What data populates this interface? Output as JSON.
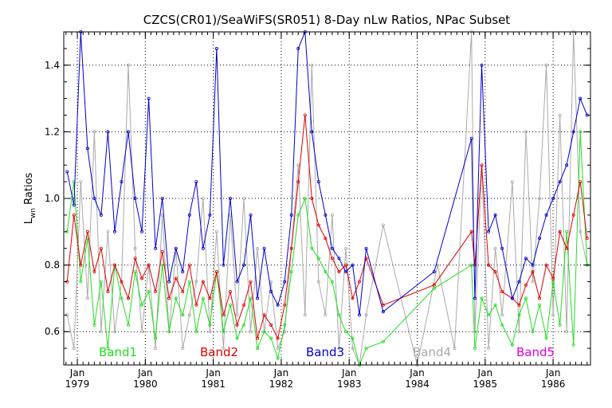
{
  "chart_data": {
    "type": "line",
    "title": "CZCS(CR01)/SeaWiFS(SR051) 8-Day nLw Ratios, NPac Subset",
    "ylabel_main": "L",
    "ylabel_sub": "wn",
    "ylabel_rest": " Ratios",
    "xlim": [
      1978.8,
      1986.55
    ],
    "ylim": [
      0.5,
      1.5
    ],
    "yticks": [
      0.6,
      0.8,
      1.0,
      1.2,
      1.4
    ],
    "ytick_labels": [
      "0.6",
      "0.8",
      "1.0",
      "1.2",
      "1.4"
    ],
    "grid": true,
    "xticks": [
      {
        "month": "Jan",
        "year": "1979",
        "x": 1979.0
      },
      {
        "month": "Jan",
        "year": "1980",
        "x": 1980.0
      },
      {
        "month": "Jan",
        "year": "1981",
        "x": 1981.0
      },
      {
        "month": "Jan",
        "year": "1982",
        "x": 1982.0
      },
      {
        "month": "Jan",
        "year": "1983",
        "x": 1983.0
      },
      {
        "month": "Jan",
        "year": "1984",
        "x": 1984.0
      },
      {
        "month": "Jan",
        "year": "1985",
        "x": 1985.0
      },
      {
        "month": "Jan",
        "year": "1986",
        "x": 1986.0
      }
    ],
    "legend": [
      {
        "name": "Band1",
        "color": "#22dd22"
      },
      {
        "name": "Band2",
        "color": "#dd0000"
      },
      {
        "name": "Band3",
        "color": "#0000cc"
      },
      {
        "name": "Band4",
        "color": "#aaaaaa"
      },
      {
        "name": "Band5",
        "color": "#dd00dd"
      }
    ],
    "legend_placement": "bottom",
    "series": [
      {
        "name": "Band4",
        "color": "#aaaaaa",
        "x": [
          1978.85,
          1978.95,
          1979.05,
          1979.15,
          1979.25,
          1979.35,
          1979.45,
          1979.55,
          1979.65,
          1979.75,
          1979.85,
          1979.95,
          1980.05,
          1980.15,
          1980.25,
          1980.35,
          1980.45,
          1980.55,
          1980.65,
          1980.75,
          1980.85,
          1980.95,
          1981.05,
          1981.15,
          1981.25,
          1981.35,
          1981.45,
          1981.55,
          1981.65,
          1981.75,
          1981.85,
          1981.95,
          1982.05,
          1982.15,
          1982.25,
          1982.35,
          1982.45,
          1982.55,
          1982.65,
          1982.75,
          1982.85,
          1982.95,
          1983.05,
          1983.15,
          1983.25,
          1983.5,
          1984.0,
          1984.3,
          1984.55,
          1984.8,
          1984.85,
          1984.95,
          1985.05,
          1985.15,
          1985.25,
          1985.4,
          1985.5,
          1985.6,
          1985.7,
          1985.8,
          1985.9,
          1986.0,
          1986.1,
          1986.2,
          1986.3,
          1986.4,
          1986.5
        ],
        "y": [
          0.65,
          0.55,
          1.05,
          0.7,
          1.2,
          0.6,
          0.9,
          0.6,
          0.75,
          1.4,
          0.85,
          0.6,
          0.8,
          0.55,
          0.95,
          0.6,
          0.85,
          0.55,
          0.65,
          0.75,
          1.0,
          0.6,
          0.9,
          0.55,
          0.95,
          0.65,
          1.0,
          0.6,
          0.85,
          0.6,
          0.75,
          0.55,
          0.6,
          0.85,
          1.1,
          0.65,
          1.4,
          0.75,
          0.65,
          0.95,
          0.55,
          0.85,
          0.55,
          0.5,
          0.65,
          0.92,
          0.5,
          0.8,
          0.55,
          1.5,
          0.6,
          1.1,
          0.55,
          0.85,
          0.65,
          1.05,
          0.6,
          1.2,
          0.75,
          1.0,
          1.4,
          0.65,
          1.25,
          0.6,
          1.5,
          0.9,
          0.8
        ]
      },
      {
        "name": "Band1",
        "color": "#22dd22",
        "x": [
          1978.85,
          1978.95,
          1979.05,
          1979.15,
          1979.25,
          1979.35,
          1979.45,
          1979.55,
          1979.65,
          1979.75,
          1979.85,
          1979.95,
          1980.05,
          1980.15,
          1980.25,
          1980.35,
          1980.45,
          1980.55,
          1980.65,
          1980.75,
          1980.85,
          1980.95,
          1981.05,
          1981.15,
          1981.25,
          1981.35,
          1981.45,
          1981.55,
          1981.65,
          1981.75,
          1981.85,
          1981.95,
          1982.05,
          1982.15,
          1982.25,
          1982.35,
          1982.45,
          1982.55,
          1982.65,
          1982.75,
          1982.85,
          1982.95,
          1983.05,
          1983.15,
          1983.25,
          1983.5,
          1984.25,
          1984.8,
          1984.85,
          1984.95,
          1985.05,
          1985.15,
          1985.25,
          1985.4,
          1985.5,
          1985.6,
          1985.7,
          1985.8,
          1985.9,
          1986.0,
          1986.1,
          1986.2,
          1986.3,
          1986.4,
          1986.5
        ],
        "y": [
          0.9,
          1.05,
          0.75,
          0.88,
          0.62,
          0.75,
          0.55,
          0.8,
          0.7,
          0.62,
          0.78,
          0.68,
          0.72,
          0.58,
          0.8,
          0.6,
          0.7,
          0.65,
          0.75,
          0.6,
          0.7,
          0.62,
          0.78,
          0.6,
          0.68,
          0.58,
          0.62,
          0.7,
          0.55,
          0.6,
          0.58,
          0.52,
          0.62,
          0.78,
          0.95,
          1.0,
          0.85,
          0.82,
          0.78,
          0.75,
          0.65,
          0.6,
          0.58,
          0.5,
          0.55,
          0.57,
          0.73,
          0.8,
          0.55,
          0.7,
          0.65,
          0.68,
          0.62,
          0.56,
          0.65,
          0.7,
          0.6,
          0.68,
          0.58,
          0.75,
          0.62,
          0.9,
          0.56,
          1.2,
          0.8
        ]
      },
      {
        "name": "Band2",
        "color": "#dd0000",
        "x": [
          1978.85,
          1978.95,
          1979.05,
          1979.15,
          1979.25,
          1979.35,
          1979.45,
          1979.55,
          1979.65,
          1979.75,
          1979.85,
          1979.95,
          1980.05,
          1980.15,
          1980.25,
          1980.35,
          1980.45,
          1980.55,
          1980.65,
          1980.75,
          1980.85,
          1980.95,
          1981.05,
          1981.15,
          1981.25,
          1981.35,
          1981.45,
          1981.55,
          1981.65,
          1981.75,
          1981.85,
          1981.95,
          1982.05,
          1982.15,
          1982.25,
          1982.35,
          1982.45,
          1982.55,
          1982.65,
          1982.75,
          1982.85,
          1982.95,
          1983.05,
          1983.15,
          1983.25,
          1983.5,
          1984.25,
          1984.8,
          1984.85,
          1984.95,
          1985.05,
          1985.15,
          1985.25,
          1985.4,
          1985.5,
          1985.6,
          1985.7,
          1985.8,
          1985.9,
          1986.0,
          1986.1,
          1986.2,
          1986.3,
          1986.4,
          1986.5
        ],
        "y": [
          0.75,
          0.95,
          0.8,
          0.9,
          0.78,
          0.85,
          0.72,
          0.8,
          0.75,
          0.7,
          0.82,
          0.76,
          0.8,
          0.72,
          0.84,
          0.7,
          0.76,
          0.72,
          0.8,
          0.68,
          0.75,
          0.7,
          0.78,
          0.65,
          0.72,
          0.62,
          0.68,
          0.75,
          0.58,
          0.65,
          0.62,
          0.58,
          0.68,
          0.85,
          1.05,
          1.25,
          1.0,
          0.92,
          0.88,
          0.82,
          0.78,
          0.8,
          0.7,
          0.75,
          0.82,
          0.68,
          0.74,
          0.9,
          0.8,
          1.1,
          0.8,
          0.78,
          0.72,
          0.7,
          0.68,
          0.74,
          0.78,
          0.7,
          0.8,
          0.76,
          0.9,
          0.85,
          0.95,
          1.05,
          0.88
        ]
      },
      {
        "name": "Band3",
        "color": "#0000cc",
        "x": [
          1978.85,
          1978.95,
          1979.05,
          1979.15,
          1979.25,
          1979.35,
          1979.45,
          1979.55,
          1979.65,
          1979.75,
          1979.85,
          1979.95,
          1980.05,
          1980.15,
          1980.25,
          1980.35,
          1980.45,
          1980.55,
          1980.65,
          1980.75,
          1980.85,
          1980.95,
          1981.05,
          1981.15,
          1981.25,
          1981.35,
          1981.45,
          1981.55,
          1981.65,
          1981.75,
          1981.85,
          1981.95,
          1982.05,
          1982.15,
          1982.25,
          1982.35,
          1982.45,
          1982.55,
          1982.65,
          1982.75,
          1982.85,
          1982.95,
          1983.05,
          1983.15,
          1983.25,
          1983.5,
          1984.25,
          1984.8,
          1984.85,
          1984.95,
          1985.05,
          1985.15,
          1985.25,
          1985.4,
          1985.5,
          1985.6,
          1985.7,
          1985.8,
          1985.9,
          1986.0,
          1986.1,
          1986.2,
          1986.3,
          1986.4,
          1986.5
        ],
        "y": [
          1.08,
          0.98,
          1.5,
          1.15,
          1.0,
          0.95,
          1.2,
          0.9,
          1.05,
          1.2,
          1.0,
          0.9,
          1.3,
          0.85,
          1.0,
          0.75,
          0.85,
          0.78,
          0.95,
          1.05,
          0.85,
          0.95,
          1.45,
          0.8,
          1.0,
          0.75,
          0.8,
          0.95,
          0.7,
          0.85,
          0.72,
          0.68,
          0.75,
          0.95,
          1.45,
          1.5,
          1.2,
          1.05,
          0.95,
          0.85,
          0.82,
          0.78,
          0.8,
          0.65,
          0.85,
          0.66,
          0.78,
          1.18,
          0.7,
          1.4,
          0.9,
          0.95,
          0.85,
          0.7,
          0.75,
          0.82,
          0.8,
          0.88,
          0.95,
          1.0,
          1.05,
          1.1,
          1.2,
          1.3,
          1.25
        ]
      }
    ]
  }
}
